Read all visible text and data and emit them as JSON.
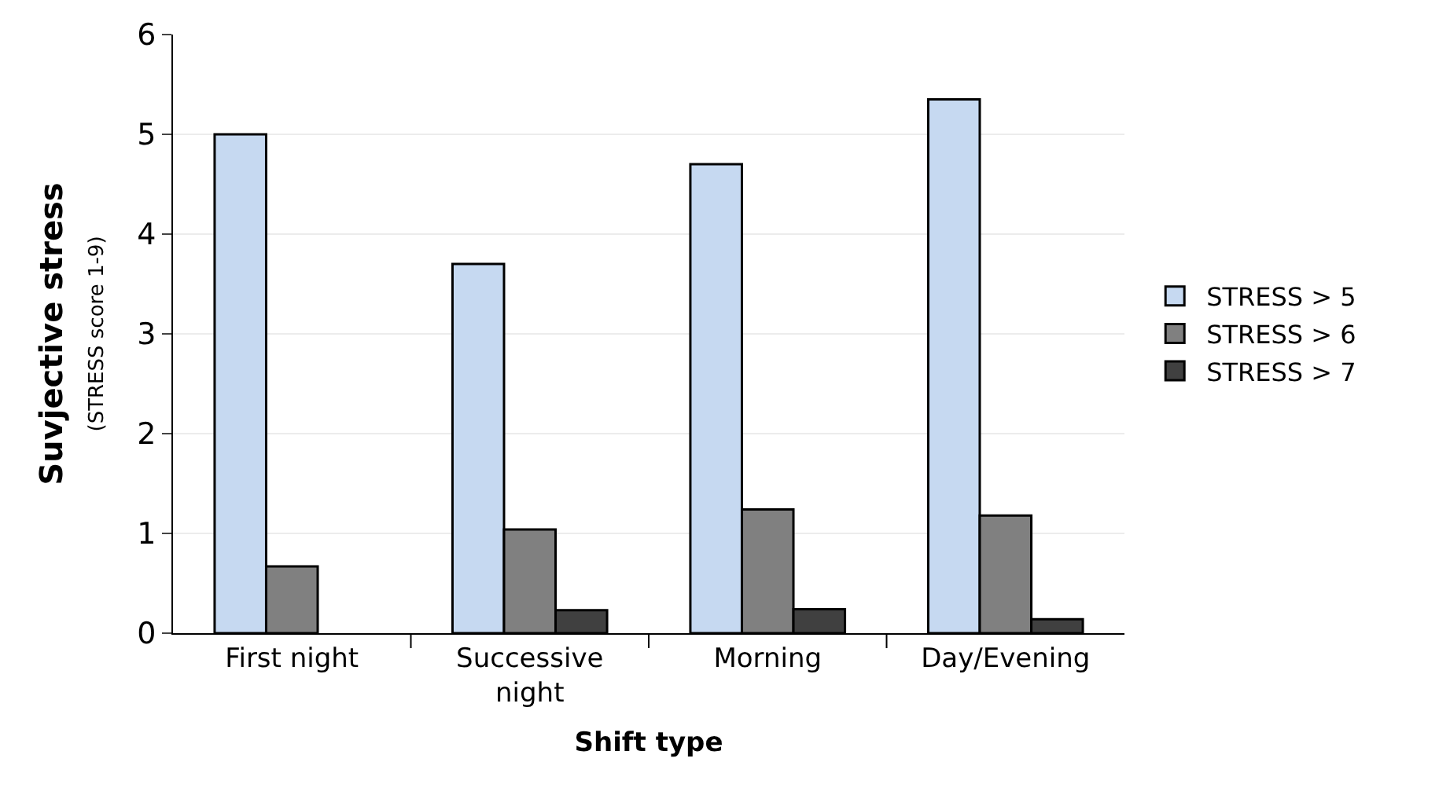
{
  "chart_data": {
    "type": "bar",
    "xlabel": "Shift type",
    "ylabel": "Suvjective stress",
    "categories": [
      "First night",
      "Successive\nnight",
      "Morning",
      "Day/Evening"
    ],
    "series": [
      {
        "name": "STRESS > 5",
        "color": "#c6d9f1",
        "values": [
          5.0,
          3.7,
          4.7,
          5.35
        ]
      },
      {
        "name": "STRESS > 6",
        "color": "#808080",
        "values": [
          0.67,
          1.04,
          1.24,
          1.18
        ]
      },
      {
        "name": "STRESS > 7",
        "color": "#404040",
        "values": [
          null,
          0.23,
          0.24,
          0.14
        ]
      }
    ],
    "annotations": [
      "(STRESS score 1-9)"
    ],
    "ylim": [
      0,
      6
    ],
    "yticks": [
      0,
      1,
      2,
      3,
      4,
      5,
      6
    ],
    "grid": "y",
    "legend": "right"
  }
}
